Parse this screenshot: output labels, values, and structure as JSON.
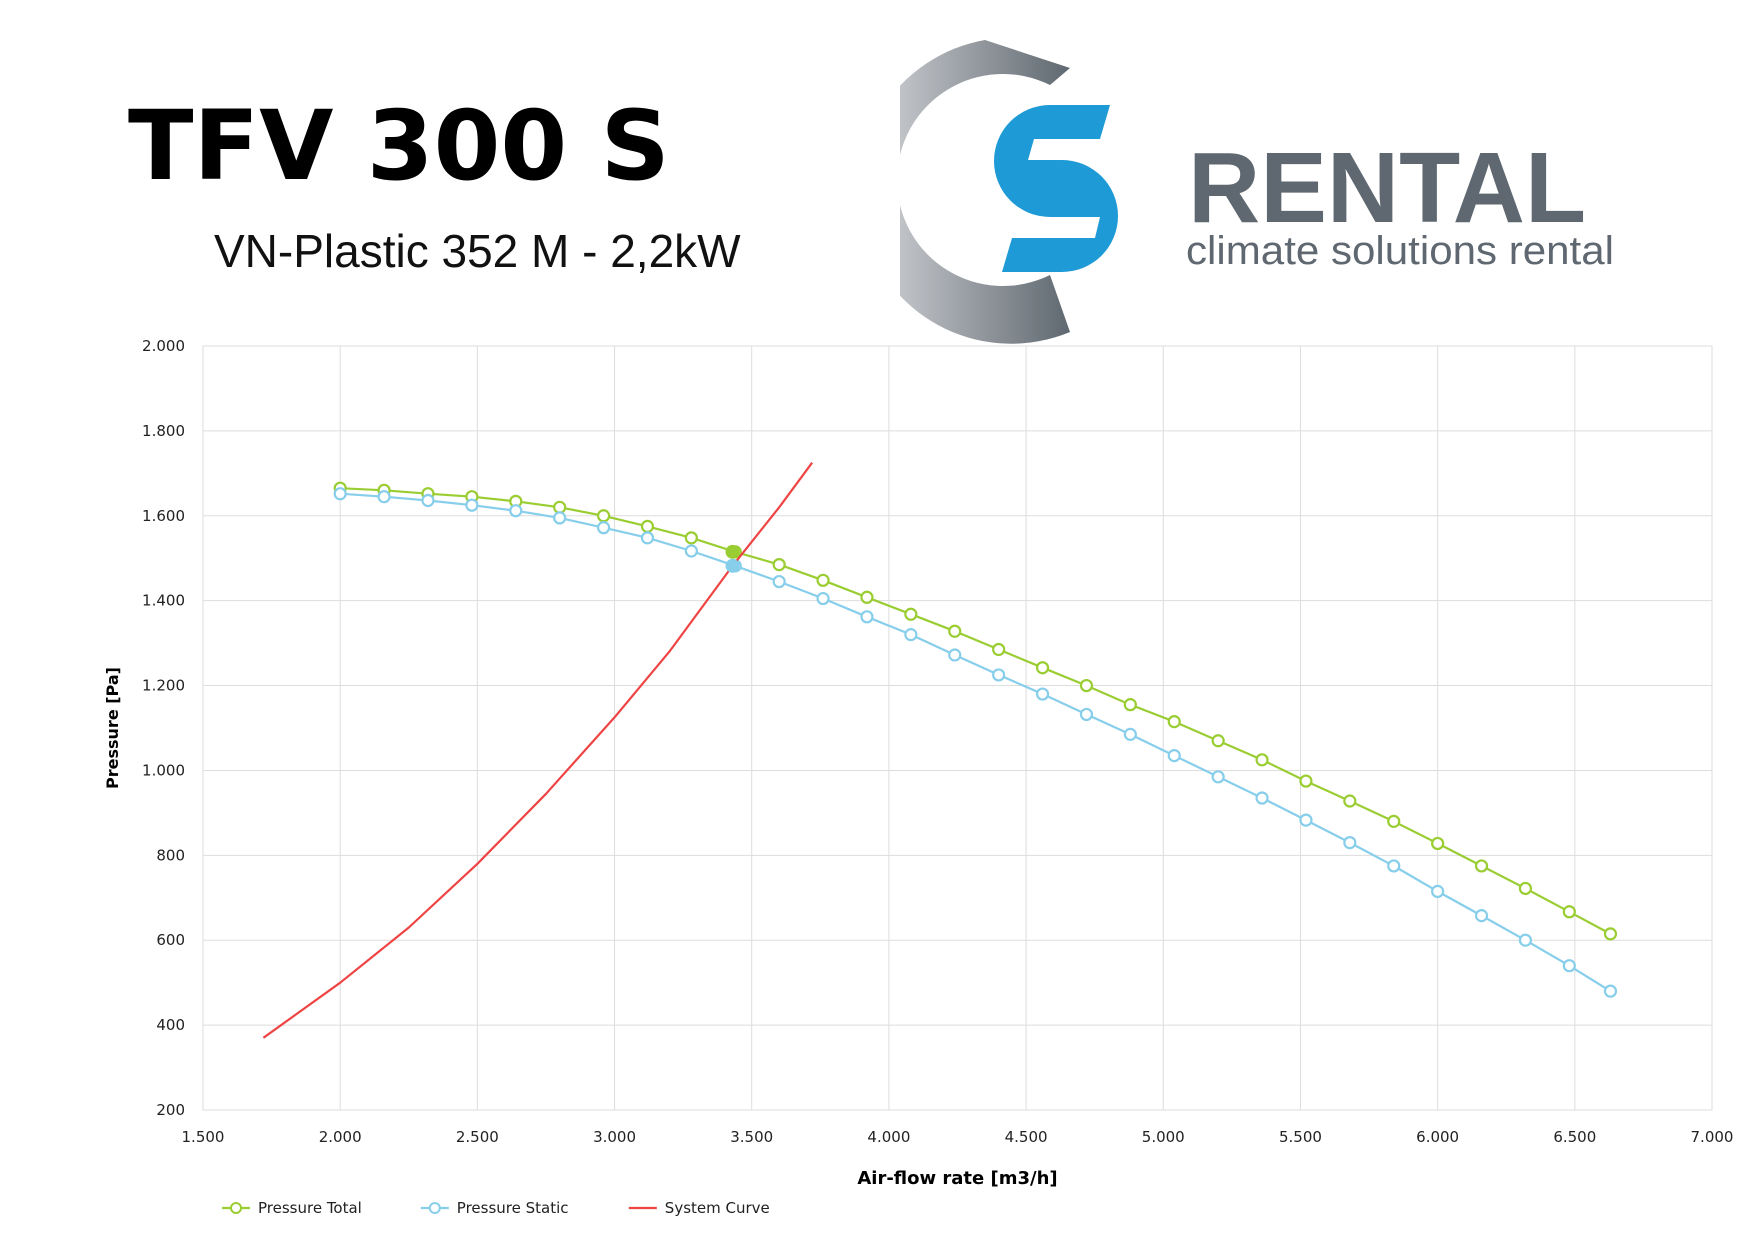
{
  "header": {
    "title": "TFV 300 S",
    "subtitle": "VN-Plastic 352 M - 2,2kW"
  },
  "logo": {
    "word": "RENTAL",
    "tagline": "climate solutions rental",
    "colors": {
      "ring_light": "#d8d9dc",
      "ring_dark": "#5f6870",
      "s_blue": "#1e9ad6",
      "text_gray": "#5f6870"
    }
  },
  "chart_data": {
    "type": "line",
    "xlabel": "Air-flow rate [m3/h]",
    "ylabel": "Pressure [Pa]",
    "xlim": [
      1500,
      7000
    ],
    "ylim": [
      200,
      2000
    ],
    "xticks": [
      1500,
      2000,
      2500,
      3000,
      3500,
      4000,
      4500,
      5000,
      5500,
      6000,
      6500,
      7000
    ],
    "xtick_labels": [
      "1.500",
      "2.000",
      "2.500",
      "3.000",
      "3.500",
      "4.000",
      "4.500",
      "5.000",
      "5.500",
      "6.000",
      "6.500",
      "7.000"
    ],
    "yticks": [
      200,
      400,
      600,
      800,
      1000,
      1200,
      1400,
      1600,
      1800,
      2000
    ],
    "ytick_labels": [
      "200",
      "400",
      "600",
      "800",
      "1.000",
      "1.200",
      "1.400",
      "1.600",
      "1.800",
      "2.000"
    ],
    "grid": true,
    "legend_position": "bottom-left",
    "series": [
      {
        "name": "Pressure Total",
        "color": "#9acd32",
        "marker": "circle",
        "x": [
          2000,
          2160,
          2320,
          2480,
          2640,
          2800,
          2960,
          3120,
          3280,
          3440,
          3600,
          3760,
          3920,
          4080,
          4240,
          4400,
          4560,
          4720,
          4880,
          5040,
          5200,
          5360,
          5520,
          5680,
          5840,
          6000,
          6160,
          6320,
          6480,
          6630
        ],
        "y": [
          1665,
          1660,
          1652,
          1645,
          1634,
          1620,
          1600,
          1575,
          1548,
          1515,
          1485,
          1448,
          1408,
          1368,
          1328,
          1285,
          1242,
          1200,
          1155,
          1115,
          1070,
          1025,
          975,
          928,
          880,
          828,
          775,
          722,
          667,
          615
        ]
      },
      {
        "name": "Pressure Static",
        "color": "#87ceeb",
        "marker": "circle",
        "x": [
          2000,
          2160,
          2320,
          2480,
          2640,
          2800,
          2960,
          3120,
          3280,
          3440,
          3600,
          3760,
          3920,
          4080,
          4240,
          4400,
          4560,
          4720,
          4880,
          5040,
          5200,
          5360,
          5520,
          5680,
          5840,
          6000,
          6160,
          6320,
          6480,
          6630
        ],
        "y": [
          1652,
          1645,
          1636,
          1625,
          1612,
          1595,
          1572,
          1548,
          1517,
          1482,
          1445,
          1405,
          1362,
          1320,
          1272,
          1225,
          1180,
          1132,
          1085,
          1035,
          985,
          935,
          883,
          830,
          775,
          715,
          658,
          600,
          540,
          480
        ]
      },
      {
        "name": "System Curve",
        "color": "#ee4444",
        "marker": "none",
        "x": [
          1720,
          2000,
          2250,
          2500,
          2750,
          3000,
          3200,
          3430,
          3600,
          3720
        ],
        "y": [
          370,
          500,
          630,
          780,
          945,
          1125,
          1280,
          1482,
          1620,
          1725
        ]
      }
    ],
    "operating_point": {
      "x": 3430,
      "y_total": 1515,
      "y_static": 1482
    }
  }
}
